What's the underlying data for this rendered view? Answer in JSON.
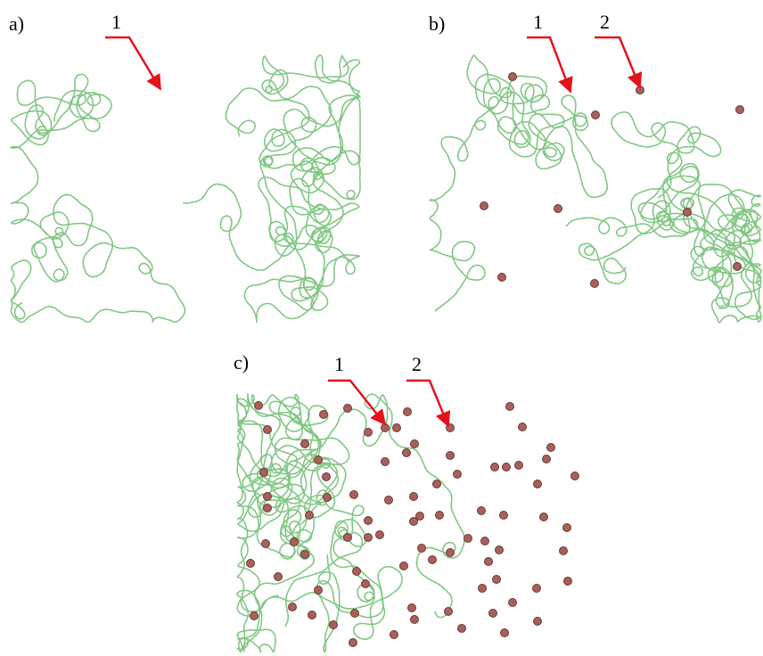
{
  "panels": [
    {
      "label": "a)",
      "callouts": [
        "1"
      ]
    },
    {
      "label": "b)",
      "callouts": [
        "1",
        "2"
      ]
    },
    {
      "label": "c)",
      "callouts": [
        "1",
        "2"
      ]
    }
  ]
}
